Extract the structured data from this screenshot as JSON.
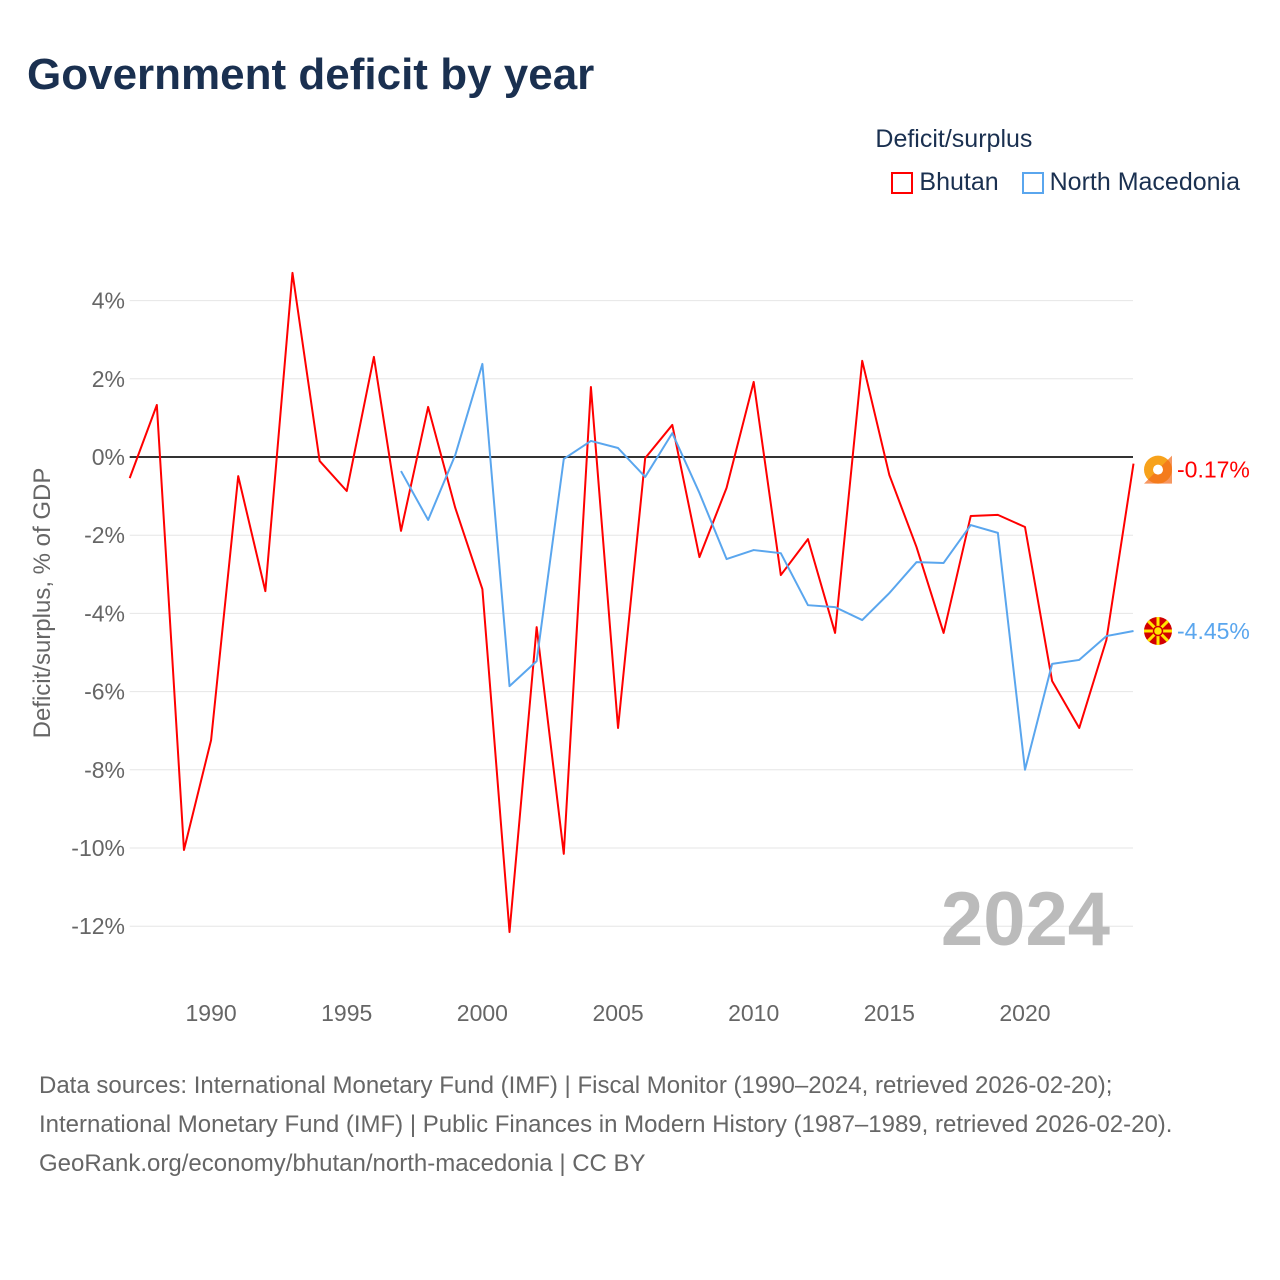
{
  "title": "Government deficit by year",
  "legend": {
    "title": "Deficit/surplus",
    "items": [
      {
        "label": "Bhutan",
        "color": "#ff0000"
      },
      {
        "label": "North Macedonia",
        "color": "#5aa6ee"
      }
    ]
  },
  "chart_data": {
    "type": "line",
    "title": "Government deficit by year",
    "xlabel": "",
    "ylabel": "Deficit/surplus, % of GDP",
    "xlim": [
      1987,
      2024
    ],
    "ylim": [
      -13.5,
      4.8
    ],
    "x_ticks": [
      1990,
      1995,
      2000,
      2005,
      2010,
      2015,
      2020
    ],
    "y_ticks": [
      4,
      2,
      0,
      -2,
      -4,
      -6,
      -8,
      -10,
      -12
    ],
    "y_tick_labels": [
      "4%",
      "2%",
      "0%",
      "-2%",
      "-4%",
      "-6%",
      "-8%",
      "-10%",
      "-12%"
    ],
    "grid": true,
    "legend_position": "top-right",
    "year_label": "2024",
    "series": [
      {
        "name": "Bhutan",
        "color": "#ff0000",
        "end_label": "-0.17%",
        "x": [
          1987,
          1988,
          1989,
          1990,
          1991,
          1992,
          1993,
          1994,
          1995,
          1996,
          1997,
          1998,
          1999,
          2000,
          2001,
          2002,
          2003,
          2004,
          2005,
          2006,
          2007,
          2008,
          2009,
          2010,
          2011,
          2012,
          2013,
          2014,
          2015,
          2016,
          2017,
          2018,
          2019,
          2020,
          2021,
          2022,
          2023,
          2024
        ],
        "values": [
          -0.54,
          1.33,
          -10.05,
          -7.24,
          -0.49,
          -3.43,
          4.71,
          -0.1,
          -0.87,
          2.56,
          -1.89,
          1.28,
          -1.3,
          -3.38,
          -12.15,
          -4.35,
          -10.15,
          1.79,
          -6.93,
          -0.03,
          0.82,
          -2.56,
          -0.79,
          1.92,
          -3.02,
          -2.1,
          -4.5,
          2.46,
          -0.46,
          -2.3,
          -4.5,
          -1.51,
          -1.48,
          -1.79,
          -5.73,
          -6.93,
          -4.68,
          -0.17
        ]
      },
      {
        "name": "North Macedonia",
        "color": "#5aa6ee",
        "end_label": "-4.45%",
        "x": [
          1997,
          1998,
          1999,
          2000,
          2001,
          2002,
          2003,
          2004,
          2005,
          2006,
          2007,
          2008,
          2009,
          2010,
          2011,
          2012,
          2013,
          2014,
          2015,
          2016,
          2017,
          2018,
          2019,
          2020,
          2021,
          2022,
          2023,
          2024
        ],
        "values": [
          -0.36,
          -1.61,
          0.05,
          2.38,
          -5.86,
          -5.22,
          -0.05,
          0.41,
          0.23,
          -0.51,
          0.61,
          -0.92,
          -2.61,
          -2.38,
          -2.46,
          -3.79,
          -3.84,
          -4.17,
          -3.48,
          -2.69,
          -2.71,
          -1.74,
          -1.94,
          -8.0,
          -5.29,
          -5.19,
          -4.58,
          -4.45
        ]
      }
    ]
  },
  "sources": {
    "line1": "Data sources: International Monetary Fund (IMF) | Fiscal Monitor (1990–2024, retrieved 2026-02-20); International Monetary Fund (IMF) | Public Finances in Modern History (1987–1989, retrieved 2026-02-20).",
    "line2": "GeoRank.org/economy/bhutan/north-macedonia | CC BY"
  }
}
